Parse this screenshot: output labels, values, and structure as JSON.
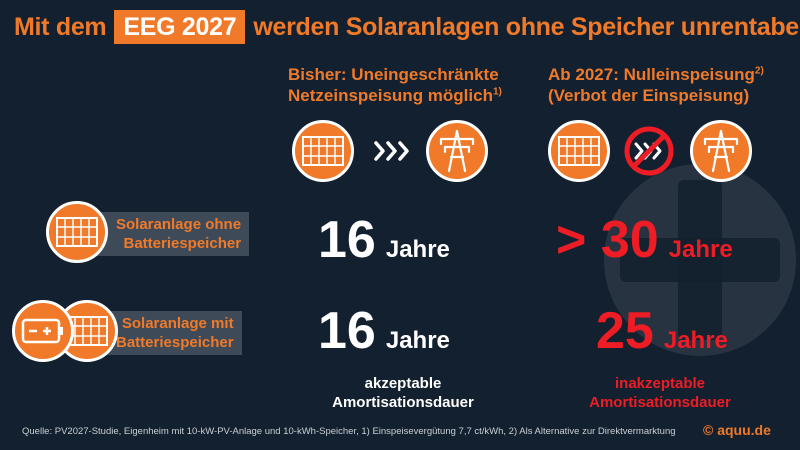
{
  "title": {
    "prefix": "Mit dem",
    "highlight": "EEG 2027",
    "suffix": "werden Solaranlagen ohne Speicher unrentabel"
  },
  "columns": {
    "current": {
      "line1": "Bisher: Uneingeschränkte",
      "line2": "Netzeinspeisung möglich",
      "footnote": "1)"
    },
    "future": {
      "line1": "Ab 2027: Nulleinspeisung",
      "footnote": "2)",
      "line2": "(Verbot der Einspeisung)"
    }
  },
  "rows": [
    {
      "label_line1": "Solaranlage ohne",
      "label_line2": "Batteriespeicher",
      "current_value": "16",
      "current_unit": "Jahre",
      "future_value": "> 30",
      "future_unit": "Jahre"
    },
    {
      "label_line1": "Solaranlage mit",
      "label_line2": "Batteriespeicher",
      "current_value": "16",
      "current_unit": "Jahre",
      "future_value": "25",
      "future_unit": "Jahre"
    }
  ],
  "notes": {
    "current_line1": "akzeptable",
    "current_line2": "Amortisationsdauer",
    "future_line1": "inakzeptable",
    "future_line2": "Amortisationsdauer"
  },
  "battery_icon_text": "– +",
  "source": "Quelle: PV2027-Studie, Eigenheim mit 10-kW-PV-Anlage und 10-kWh-Speicher, 1) Einspeisevergütung 7,7 ct/kWh, 2) Als Alternative zur Direktvermarktung",
  "brand": "© aquu.de",
  "colors": {
    "background": "#13202f",
    "accent": "#f07a2a",
    "negative": "#ee1c25",
    "label_bg": "#3e4a58"
  },
  "icons": [
    "solar-panel-icon",
    "arrows-right-icon",
    "power-pylon-icon",
    "no-arrows-icon",
    "battery-icon"
  ]
}
